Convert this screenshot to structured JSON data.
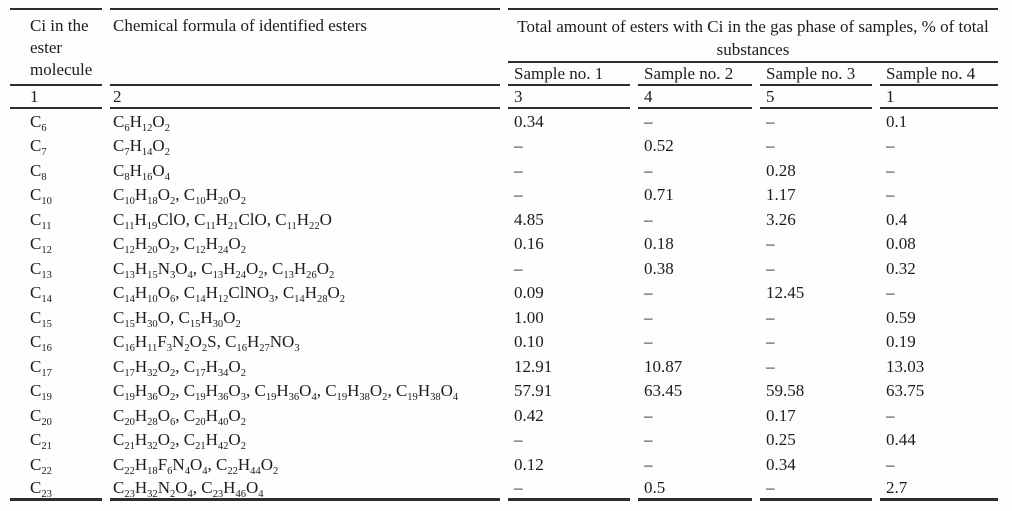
{
  "table": {
    "headers": {
      "ci": "Ci in the ester molecule",
      "formula": "Chemical formula of identified esters",
      "span": "Total amount of esters with Ci in the gas phase of samples, % of total substances",
      "samples": [
        "Sample no. 1",
        "Sample no. 2",
        "Sample no. 3",
        "Sample no. 4"
      ]
    },
    "column_numbers": [
      "1",
      "2",
      "3",
      "4",
      "5",
      "1"
    ],
    "rows": [
      {
        "ci": "C6",
        "formulas": "C6H12O2",
        "values": [
          "0.34",
          "–",
          "–",
          "0.1"
        ]
      },
      {
        "ci": "C7",
        "formulas": "C7H14O2",
        "values": [
          "–",
          "0.52",
          "–",
          "–"
        ]
      },
      {
        "ci": "C8",
        "formulas": "C8H16O4",
        "values": [
          "–",
          "–",
          "0.28",
          "–"
        ]
      },
      {
        "ci": "C10",
        "formulas": "C10H18O2, C10H20O2",
        "values": [
          "–",
          "0.71",
          "1.17",
          "–"
        ]
      },
      {
        "ci": "C11",
        "formulas": "C11H19ClO, C11H21ClO, C11H22O",
        "values": [
          "4.85",
          "–",
          "3.26",
          "0.4"
        ]
      },
      {
        "ci": "C12",
        "formulas": "C12H20O2, C12H24O2",
        "values": [
          "0.16",
          "0.18",
          "–",
          "0.08"
        ]
      },
      {
        "ci": "C13",
        "formulas": "C13H15N3O4, C13H24O2, C13H26O2",
        "values": [
          "–",
          "0.38",
          "–",
          "0.32"
        ]
      },
      {
        "ci": "C14",
        "formulas": "C14H10O6, C14H12ClNO3, C14H28O2",
        "values": [
          "0.09",
          "–",
          "12.45",
          "–"
        ]
      },
      {
        "ci": "C15",
        "formulas": "C15H30O, C15H30O2",
        "values": [
          "1.00",
          "–",
          "–",
          "0.59"
        ]
      },
      {
        "ci": "C16",
        "formulas": "C16H11F3N2O2S, C16H27NO3",
        "values": [
          "0.10",
          "–",
          "–",
          "0.19"
        ]
      },
      {
        "ci": "C17",
        "formulas": "C17H32O2, C17H34O2",
        "values": [
          "12.91",
          "10.87",
          "–",
          "13.03"
        ]
      },
      {
        "ci": "C19",
        "formulas": "C19H36O2, C19H36O3, C19H36O4, C19H38O2, C19H38O4",
        "values": [
          "57.91",
          "63.45",
          "59.58",
          "63.75"
        ]
      },
      {
        "ci": "C20",
        "formulas": "C20H28O6, C20H40O2",
        "values": [
          "0.42",
          "–",
          "0.17",
          "–"
        ]
      },
      {
        "ci": "C21",
        "formulas": "C21H32O2, C21H42O2",
        "values": [
          "–",
          "–",
          "0.25",
          "0.44"
        ]
      },
      {
        "ci": "C22",
        "formulas": "C22H18F6N4O4, C22H44O2",
        "values": [
          "0.12",
          "–",
          "0.34",
          "–"
        ]
      },
      {
        "ci": "C23",
        "formulas": "C23H32N2O4, C23H46O4",
        "values": [
          "–",
          "0.5",
          "–",
          "2.7"
        ]
      }
    ]
  }
}
